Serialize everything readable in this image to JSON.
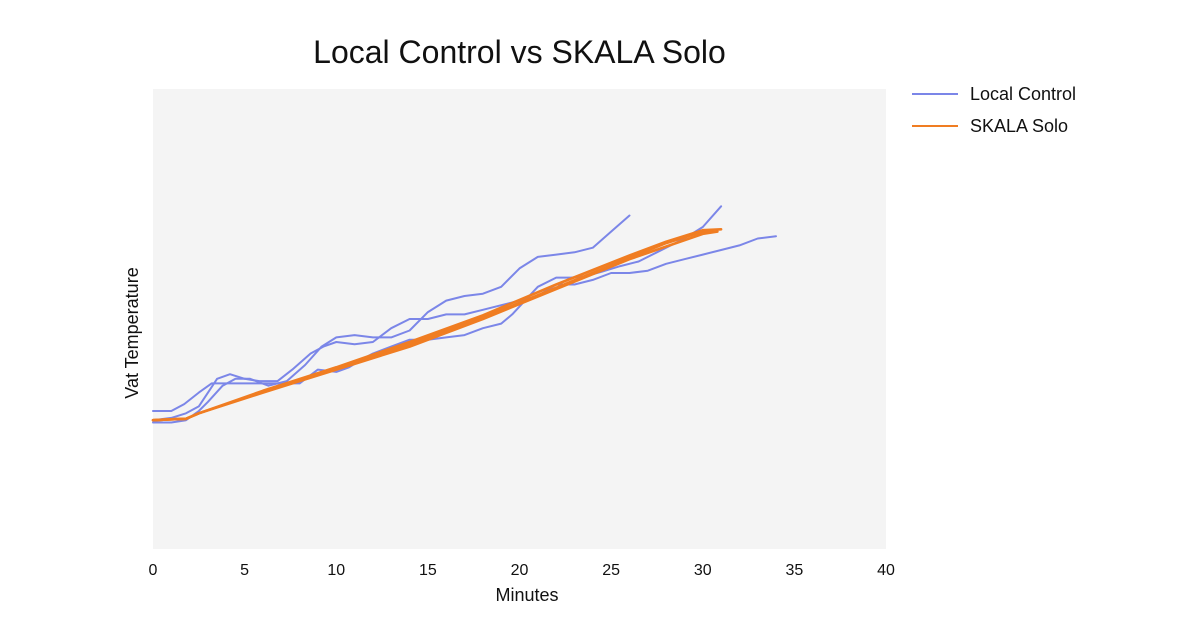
{
  "chart_data": {
    "type": "line",
    "title": "Local Control vs SKALA Solo",
    "xlabel": "Minutes",
    "ylabel": "Vat Temperature",
    "xlim": [
      0,
      40
    ],
    "ylim": [
      0,
      100
    ],
    "xticks": [
      0,
      5,
      10,
      15,
      20,
      25,
      30,
      35,
      40
    ],
    "grid": false,
    "legend_position": "right",
    "series": [
      {
        "name": "Local Control",
        "color": "#7b86e8",
        "points": [
          [
            0,
            30
          ],
          [
            1,
            30
          ],
          [
            1.7,
            31.5
          ],
          [
            2.5,
            34
          ],
          [
            3.2,
            36
          ],
          [
            4,
            36
          ],
          [
            5,
            36
          ],
          [
            6,
            36
          ],
          [
            7,
            36
          ],
          [
            8,
            36
          ],
          [
            9,
            39
          ],
          [
            10,
            38.5
          ],
          [
            10.7,
            39.5
          ],
          [
            11.3,
            41
          ],
          [
            12,
            42.5
          ],
          [
            13,
            44
          ],
          [
            14,
            45.5
          ],
          [
            15,
            45.5
          ],
          [
            16,
            46
          ],
          [
            17,
            46.5
          ],
          [
            18,
            48
          ],
          [
            19,
            49
          ],
          [
            19.6,
            51
          ],
          [
            20.3,
            54
          ],
          [
            21,
            57
          ],
          [
            22,
            59
          ],
          [
            22.8,
            59
          ],
          [
            23.6,
            59.3
          ],
          [
            24.5,
            60.3
          ],
          [
            25.5,
            61.5
          ],
          [
            26.5,
            62.5
          ],
          [
            27.5,
            64.5
          ],
          [
            28.5,
            66.5
          ],
          [
            29.2,
            68
          ],
          [
            30,
            70
          ],
          [
            31,
            74.5
          ]
        ]
      },
      {
        "name": "Local Control",
        "color": "#7b86e8",
        "points": [
          [
            0,
            28
          ],
          [
            1,
            28.5
          ],
          [
            1.8,
            29.5
          ],
          [
            2.5,
            31
          ],
          [
            3,
            34
          ],
          [
            3.5,
            37
          ],
          [
            4.2,
            38
          ],
          [
            5,
            37
          ],
          [
            5.8,
            36.5
          ],
          [
            6.8,
            36.5
          ],
          [
            7.6,
            39
          ],
          [
            8.6,
            42.5
          ],
          [
            9.3,
            44
          ],
          [
            10,
            45
          ],
          [
            11,
            44.5
          ],
          [
            12,
            45
          ],
          [
            13,
            48
          ],
          [
            14,
            50
          ],
          [
            15,
            50
          ],
          [
            16,
            51
          ],
          [
            17,
            51
          ],
          [
            18,
            52
          ],
          [
            19,
            53
          ],
          [
            20,
            54
          ],
          [
            21,
            55
          ],
          [
            22,
            57.5
          ],
          [
            23,
            57.5
          ],
          [
            24,
            58.5
          ],
          [
            25,
            60
          ],
          [
            26,
            60
          ],
          [
            27,
            60.5
          ],
          [
            28,
            62
          ],
          [
            29,
            63
          ],
          [
            30,
            64
          ],
          [
            31,
            65
          ],
          [
            32,
            66
          ],
          [
            33,
            67.5
          ],
          [
            34,
            68
          ]
        ]
      },
      {
        "name": "Local Control",
        "color": "#7b86e8",
        "points": [
          [
            0,
            27.5
          ],
          [
            1,
            27.5
          ],
          [
            1.8,
            28
          ],
          [
            2.5,
            30
          ],
          [
            3,
            32
          ],
          [
            3.8,
            35.5
          ],
          [
            4.5,
            37
          ],
          [
            5.3,
            37
          ],
          [
            6.3,
            35.5
          ],
          [
            7.3,
            36.5
          ],
          [
            8.3,
            40
          ],
          [
            9.2,
            44
          ],
          [
            10,
            46
          ],
          [
            11,
            46.5
          ],
          [
            12,
            46
          ],
          [
            13,
            46
          ],
          [
            14,
            47.5
          ],
          [
            15,
            51.5
          ],
          [
            16,
            54
          ],
          [
            17,
            55
          ],
          [
            18,
            55.5
          ],
          [
            19,
            57
          ],
          [
            20,
            61
          ],
          [
            21,
            63.5
          ],
          [
            22,
            64
          ],
          [
            23,
            64.5
          ],
          [
            24,
            65.5
          ],
          [
            25,
            69
          ],
          [
            26,
            72.5
          ]
        ]
      },
      {
        "name": "SKALA Solo",
        "color": "#f07d22",
        "points": [
          [
            0,
            28
          ],
          [
            1,
            28.2
          ],
          [
            1.8,
            28.3
          ],
          [
            2.5,
            29.5
          ],
          [
            6,
            34
          ],
          [
            10,
            39
          ],
          [
            14,
            44
          ],
          [
            18,
            50
          ],
          [
            22,
            56.5
          ],
          [
            26,
            63
          ],
          [
            30,
            68.5
          ],
          [
            30.8,
            69
          ]
        ]
      },
      {
        "name": "SKALA Solo",
        "color": "#f07d22",
        "points": [
          [
            0,
            28
          ],
          [
            1,
            28.2
          ],
          [
            1.8,
            28.3
          ],
          [
            2.5,
            29.5
          ],
          [
            6,
            34.2
          ],
          [
            10,
            39.3
          ],
          [
            14,
            44.5
          ],
          [
            18,
            50.3
          ],
          [
            22,
            56.8
          ],
          [
            26,
            63.3
          ],
          [
            28,
            66.5
          ],
          [
            30,
            69
          ],
          [
            30.5,
            69.2
          ]
        ]
      },
      {
        "name": "SKALA Solo",
        "color": "#f07d22",
        "points": [
          [
            0,
            28
          ],
          [
            1,
            28.2
          ],
          [
            1.8,
            28.3
          ],
          [
            2.5,
            29.5
          ],
          [
            6,
            34.4
          ],
          [
            10,
            39.5
          ],
          [
            14,
            45
          ],
          [
            18,
            50.8
          ],
          [
            22,
            57.5
          ],
          [
            26,
            63.8
          ],
          [
            28,
            66.8
          ],
          [
            30,
            69.3
          ],
          [
            31,
            69.5
          ]
        ]
      }
    ]
  },
  "legend": {
    "items": [
      {
        "label": "Local Control",
        "color": "#7b86e8"
      },
      {
        "label": "SKALA Solo",
        "color": "#f07d22"
      }
    ]
  },
  "style": {
    "plot_background": "#f4f4f4"
  }
}
